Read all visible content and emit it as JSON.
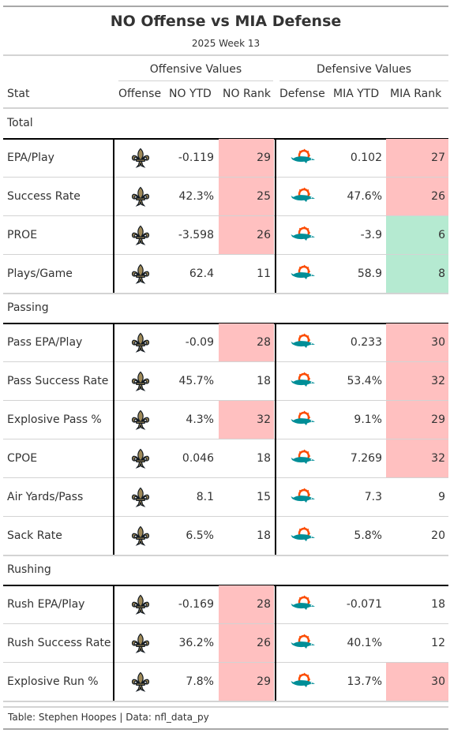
{
  "title": "NO Offense vs MIA Defense",
  "subtitle": "2025 Week 13",
  "spanners": {
    "offense": "Offensive Values",
    "defense": "Defensive Values"
  },
  "columns": {
    "stat": "Stat",
    "offense": "Offense",
    "off_ytd": "NO YTD",
    "off_rank": "NO Rank",
    "defense": "Defense",
    "def_ytd": "MIA YTD",
    "def_rank": "MIA Rank"
  },
  "colors": {
    "bad": "#ffc0c0",
    "good": "#b5ead1",
    "saints_gold": "#a08a58",
    "saints_black": "#101820",
    "dolphins_aqua": "#008e97",
    "dolphins_orange": "#fc4c02"
  },
  "icons": {
    "offense": "saints-fleur-de-lis-icon",
    "defense": "dolphins-logo-icon"
  },
  "chart_data": {
    "type": "table",
    "groups": [
      {
        "name": "Total",
        "rows": [
          {
            "stat": "EPA/Play",
            "off_ytd": "-0.119",
            "off_rank": 29,
            "off_color": "bad",
            "def_ytd": "0.102",
            "def_rank": 27,
            "def_color": "bad"
          },
          {
            "stat": "Success Rate",
            "off_ytd": "42.3%",
            "off_rank": 25,
            "off_color": "bad",
            "def_ytd": "47.6%",
            "def_rank": 26,
            "def_color": "bad"
          },
          {
            "stat": "PROE",
            "off_ytd": "-3.598",
            "off_rank": 26,
            "off_color": "bad",
            "def_ytd": "-3.9",
            "def_rank": 6,
            "def_color": "good"
          },
          {
            "stat": "Plays/Game",
            "off_ytd": "62.4",
            "off_rank": 11,
            "off_color": "none",
            "def_ytd": "58.9",
            "def_rank": 8,
            "def_color": "good"
          }
        ]
      },
      {
        "name": "Passing",
        "rows": [
          {
            "stat": "Pass EPA/Play",
            "off_ytd": "-0.09",
            "off_rank": 28,
            "off_color": "bad",
            "def_ytd": "0.233",
            "def_rank": 30,
            "def_color": "bad"
          },
          {
            "stat": "Pass Success Rate",
            "off_ytd": "45.7%",
            "off_rank": 18,
            "off_color": "none",
            "def_ytd": "53.4%",
            "def_rank": 32,
            "def_color": "bad"
          },
          {
            "stat": "Explosive Pass %",
            "off_ytd": "4.3%",
            "off_rank": 32,
            "off_color": "bad",
            "def_ytd": "9.1%",
            "def_rank": 29,
            "def_color": "bad"
          },
          {
            "stat": "CPOE",
            "off_ytd": "0.046",
            "off_rank": 18,
            "off_color": "none",
            "def_ytd": "7.269",
            "def_rank": 32,
            "def_color": "bad"
          },
          {
            "stat": "Air Yards/Pass",
            "off_ytd": "8.1",
            "off_rank": 15,
            "off_color": "none",
            "def_ytd": "7.3",
            "def_rank": 9,
            "def_color": "none"
          },
          {
            "stat": "Sack Rate",
            "off_ytd": "6.5%",
            "off_rank": 18,
            "off_color": "none",
            "def_ytd": "5.8%",
            "def_rank": 20,
            "def_color": "none"
          }
        ]
      },
      {
        "name": "Rushing",
        "rows": [
          {
            "stat": "Rush EPA/Play",
            "off_ytd": "-0.169",
            "off_rank": 28,
            "off_color": "bad",
            "def_ytd": "-0.071",
            "def_rank": 18,
            "def_color": "none"
          },
          {
            "stat": "Rush Success Rate",
            "off_ytd": "36.2%",
            "off_rank": 26,
            "off_color": "bad",
            "def_ytd": "40.1%",
            "def_rank": 12,
            "def_color": "none"
          },
          {
            "stat": "Explosive Run %",
            "off_ytd": "7.8%",
            "off_rank": 29,
            "off_color": "bad",
            "def_ytd": "13.7%",
            "def_rank": 30,
            "def_color": "bad"
          }
        ]
      }
    ]
  },
  "source_note": "Table: Stephen Hoopes | Data: nfl_data_py"
}
